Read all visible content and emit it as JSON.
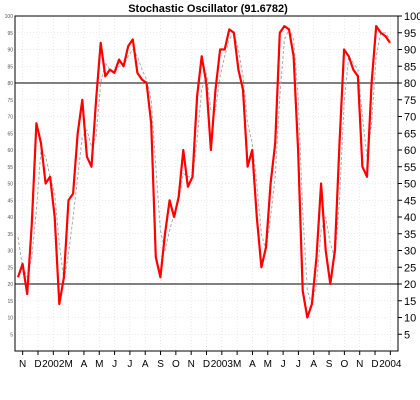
{
  "chart_data": {
    "type": "line",
    "title": "Stochastic Oscillator (91.6782)",
    "ylim": [
      0,
      100
    ],
    "yticks": [
      5,
      10,
      15,
      20,
      25,
      30,
      35,
      40,
      45,
      50,
      55,
      60,
      65,
      70,
      75,
      80,
      85,
      90,
      95,
      100
    ],
    "reference_lines": [
      20,
      80
    ],
    "grid": true,
    "xticks": [
      "N",
      "D",
      "2002",
      "M",
      "A",
      "M",
      "J",
      "J",
      "A",
      "S",
      "O",
      "N",
      "D",
      "2003",
      "M",
      "A",
      "M",
      "J",
      "J",
      "A",
      "S",
      "O",
      "N",
      "D",
      "2004"
    ],
    "series": [
      {
        "style": "solid",
        "color": "#ff0000",
        "values": [
          22,
          26,
          17,
          38,
          68,
          62,
          50,
          52,
          40,
          14,
          22,
          45,
          47,
          65,
          75,
          58,
          55,
          75,
          92,
          82,
          84,
          83,
          87,
          85,
          91,
          93,
          83,
          81,
          80,
          68,
          28,
          22,
          35,
          45,
          40,
          46,
          60,
          49,
          52,
          76,
          88,
          80,
          60,
          78,
          90,
          90,
          96,
          95,
          84,
          78,
          55,
          60,
          40,
          25,
          31,
          50,
          62,
          95,
          97,
          96,
          88,
          60,
          18,
          10,
          14,
          28,
          50,
          30,
          20,
          30,
          62,
          90,
          88,
          84,
          82,
          55,
          52,
          80,
          97,
          95,
          94,
          92
        ],
        "xticks": []
      },
      {
        "style": "dashed",
        "color": "#aaaaaa",
        "values": [
          34,
          25,
          22,
          28,
          42,
          60,
          58,
          52,
          47,
          32,
          21,
          29,
          40,
          52,
          64,
          66,
          61,
          64,
          80,
          86,
          84,
          83,
          85,
          85,
          88,
          90,
          88,
          84,
          81,
          75,
          55,
          36,
          30,
          36,
          41,
          45,
          53,
          52,
          52,
          63,
          78,
          83,
          72,
          72,
          82,
          88,
          93,
          95,
          90,
          82,
          68,
          62,
          50,
          35,
          30,
          40,
          52,
          76,
          93,
          96,
          93,
          76,
          42,
          18,
          14,
          20,
          36,
          40,
          32,
          28,
          45,
          74,
          88,
          86,
          84,
          70,
          58,
          68,
          88,
          95,
          95,
          93
        ],
        "xticks": []
      }
    ]
  }
}
